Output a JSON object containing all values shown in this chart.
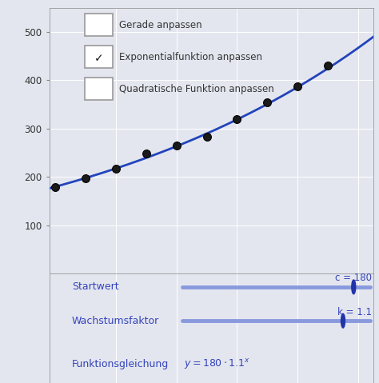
{
  "bg_color": "#e4e6ef",
  "plot_bg": "#e4e6ef",
  "grid_color": "#ffffff",
  "curve_color": "#2244bb",
  "dot_color": "#222222",
  "slider_color": "#8899dd",
  "slider_knob_color": "#2233aa",
  "label_color": "#3344bb",
  "xlim": [
    -0.2,
    10.5
  ],
  "ylim": [
    0,
    550
  ],
  "xticks": [
    2,
    4,
    6,
    8,
    10
  ],
  "yticks": [
    100,
    200,
    300,
    400,
    500
  ],
  "data_points_x": [
    0,
    1,
    2,
    3,
    4,
    5,
    6,
    7,
    8,
    9
  ],
  "data_points_y": [
    180,
    198,
    218,
    248,
    265,
    283,
    320,
    355,
    388,
    430
  ],
  "c": 180,
  "k": 1.1,
  "checkbox_items": [
    "Gerade anpassen",
    "Exponentialfunktion anpassen",
    "Quadratische Funktion anpassen"
  ],
  "checked": [
    false,
    true,
    false
  ],
  "startwert_label": "Startwert",
  "wachstum_label": "Wachstumsfaktor",
  "funktion_label": "Funktionsgleichung",
  "c_label": "c = 180",
  "k_label": "k = 1.1",
  "checkbox_color": "#aaaaaa",
  "check_color": "#333333"
}
